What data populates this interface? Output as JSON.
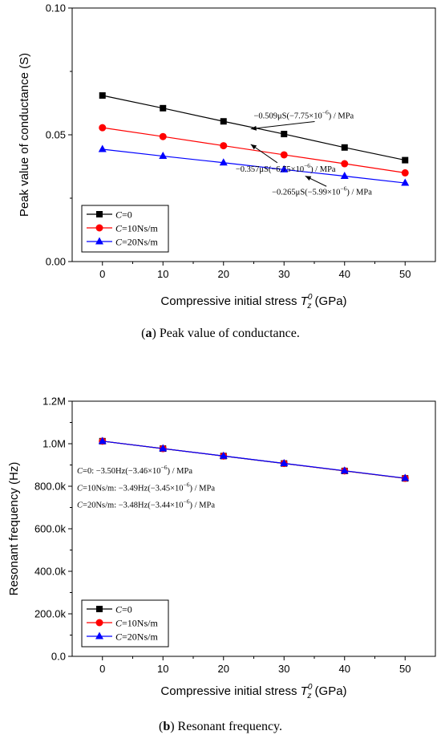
{
  "chart_data": [
    {
      "type": "line",
      "panel": "a",
      "caption_letter": "a",
      "caption_text": " Peak value of conductance.",
      "xlabel_prefix": "Compressive initial stress ",
      "xlabel_symbol": "T",
      "xlabel_sup": "0",
      "xlabel_sub": "z",
      "xlabel_suffix": " (GPa)",
      "ylabel": "Peak value of conductance (S)",
      "xlim": [
        -5,
        55
      ],
      "ylim": [
        0,
        0.1
      ],
      "x_ticks": [
        0,
        10,
        20,
        30,
        40,
        50
      ],
      "x_tick_labels": [
        "0",
        "10",
        "20",
        "30",
        "40",
        "50"
      ],
      "y_ticks": [
        0,
        0.05,
        0.1
      ],
      "y_tick_labels": [
        "0.00",
        "0.05",
        "0.10"
      ],
      "x": [
        0,
        10,
        20,
        30,
        40,
        50
      ],
      "series": [
        {
          "name_italic": "C",
          "name_rest": "=0",
          "color": "#000000",
          "marker": "square",
          "values": [
            0.0655,
            0.0605,
            0.0553,
            0.0503,
            0.045,
            0.04
          ]
        },
        {
          "name_italic": "C",
          "name_rest": "=10Ns/m",
          "color": "#ff0000",
          "marker": "circle",
          "values": [
            0.0528,
            0.0493,
            0.0457,
            0.0421,
            0.0386,
            0.035
          ]
        },
        {
          "name_italic": "C",
          "name_rest": "=20Ns/m",
          "color": "#0000ff",
          "marker": "triangle",
          "values": [
            0.0443,
            0.0416,
            0.039,
            0.0363,
            0.0337,
            0.031
          ]
        }
      ],
      "annotations": [
        {
          "text": "−0.509μS(−7.75×10",
          "sup": "−6",
          "tail": ") / MPa",
          "at": [
            25,
            0.0565
          ],
          "target": [
            24.5,
            0.0536
          ]
        },
        {
          "text": "−0.357μS(−6.75×10",
          "sup": "−6",
          "tail": ") / MPa",
          "at": [
            22,
            0.0355
          ],
          "target": [
            24.5,
            0.0475
          ]
        },
        {
          "text": "−0.265μS(−5.99×10",
          "sup": "−6",
          "tail": ") / MPa",
          "at": [
            28,
            0.0265
          ],
          "target": [
            33.5,
            0.035
          ]
        }
      ],
      "legend": "bottom-left"
    },
    {
      "type": "line",
      "panel": "b",
      "caption_letter": "b",
      "caption_text": " Resonant frequency.",
      "xlabel_prefix": "Compressive initial stress ",
      "xlabel_symbol": "T",
      "xlabel_sup": "0",
      "xlabel_sub": "z",
      "xlabel_suffix": " (GPa)",
      "ylabel": "Resonant frequency (Hz)",
      "xlim": [
        -5,
        55
      ],
      "ylim": [
        0,
        1200000
      ],
      "x_ticks": [
        0,
        10,
        20,
        30,
        40,
        50
      ],
      "x_tick_labels": [
        "0",
        "10",
        "20",
        "30",
        "40",
        "50"
      ],
      "y_ticks": [
        0,
        200000,
        400000,
        600000,
        800000,
        1000000,
        1200000
      ],
      "y_tick_labels": [
        "0.0",
        "200.0k",
        "400.0k",
        "600.0k",
        "800.0k",
        "1.0M",
        "1.2M"
      ],
      "x": [
        0,
        10,
        20,
        30,
        40,
        50
      ],
      "series": [
        {
          "name_italic": "C",
          "name_rest": "=0",
          "color": "#000000",
          "marker": "square",
          "values": [
            1012000,
            977000,
            942000,
            907000,
            872000,
            837000
          ]
        },
        {
          "name_italic": "C",
          "name_rest": "=10Ns/m",
          "color": "#ff0000",
          "marker": "circle",
          "values": [
            1012000,
            977100,
            942200,
            907300,
            872400,
            837500
          ]
        },
        {
          "name_italic": "C",
          "name_rest": "=20Ns/m",
          "color": "#0000ff",
          "marker": "triangle",
          "values": [
            1012000,
            977200,
            942400,
            907600,
            872800,
            838000
          ]
        }
      ],
      "annotations": [
        {
          "text": "C=0: −3.50Hz(−3.46×10",
          "sup": "−6",
          "tail": ") / MPa",
          "at": [
            -4.2,
            860000
          ]
        },
        {
          "text": "C=10Ns/m: −3.49Hz(−3.45×10",
          "sup": "−6",
          "tail": ") / MPa",
          "at": [
            -4.2,
            780000
          ]
        },
        {
          "text": "C=20Ns/m: −3.48Hz(−3.44×10",
          "sup": "−6",
          "tail": ") / MPa",
          "at": [
            -4.2,
            700000
          ]
        }
      ],
      "legend": "bottom-left"
    }
  ]
}
